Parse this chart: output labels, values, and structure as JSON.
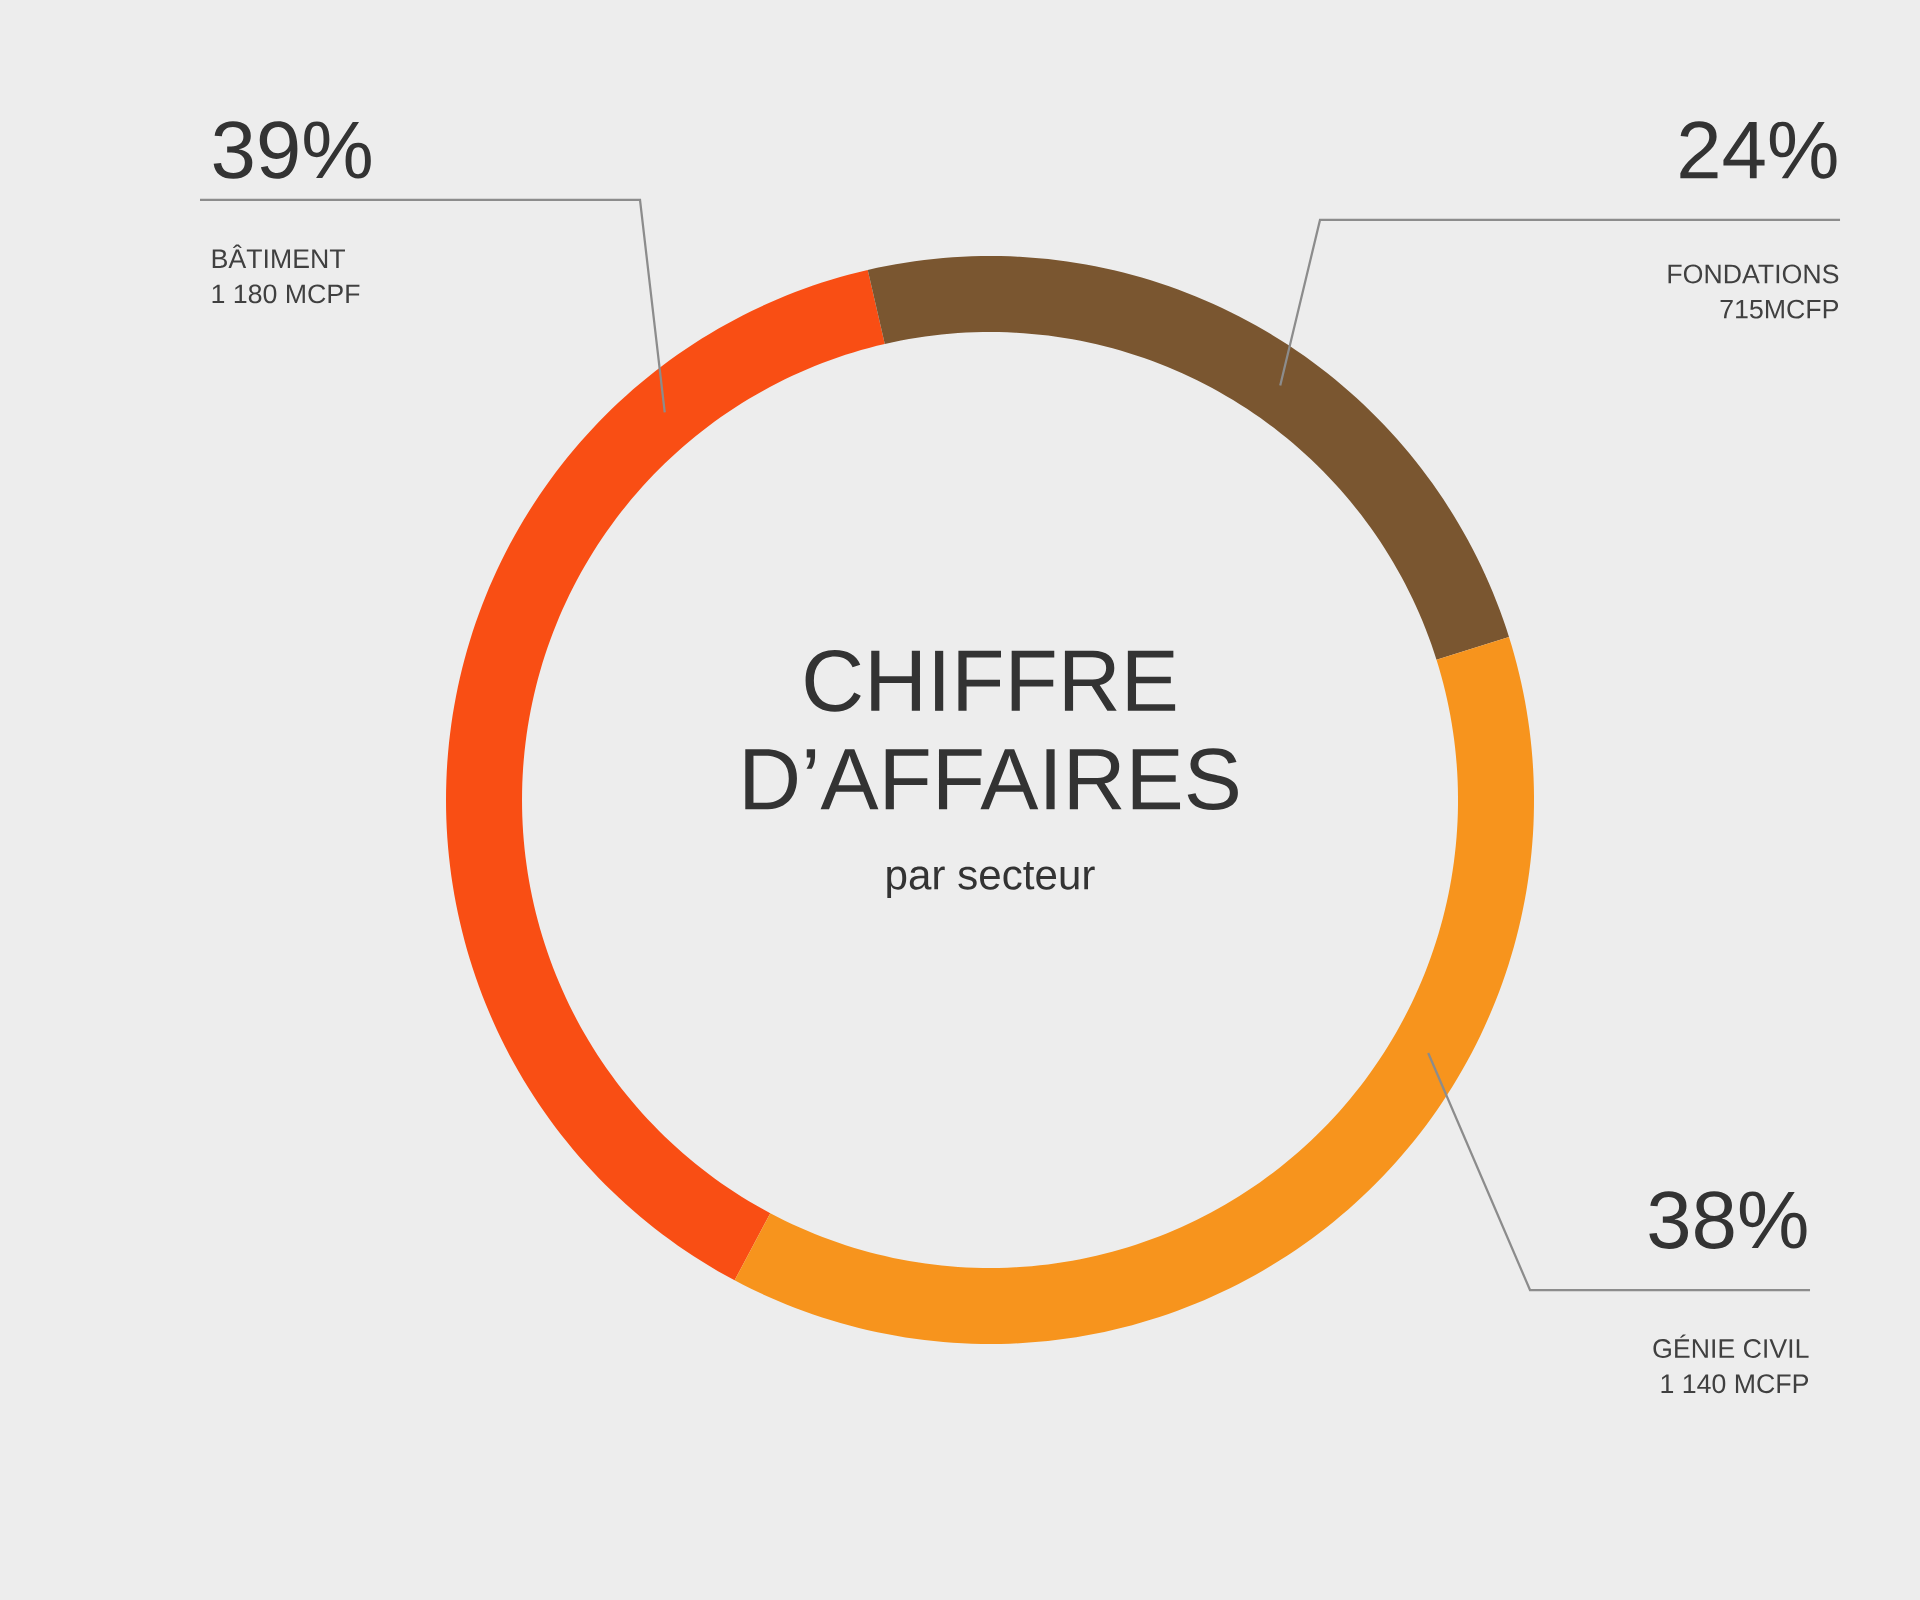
{
  "chart_data": {
    "type": "donut",
    "title": "CHIFFRE D’AFFAIRES",
    "subtitle": "par secteur",
    "categories": [
      "BÂTIMENT",
      "FONDATIONS",
      "GÉNIE CIVIL"
    ],
    "values": [
      39,
      24,
      38
    ],
    "colors": [
      "#f94e14",
      "#7a5630",
      "#f7941d"
    ],
    "value_labels": [
      "39%",
      "24%",
      "38%"
    ],
    "annotations": [
      "1 180 MCPF",
      "715MCFP",
      "1 140 MCFP"
    ]
  }
}
